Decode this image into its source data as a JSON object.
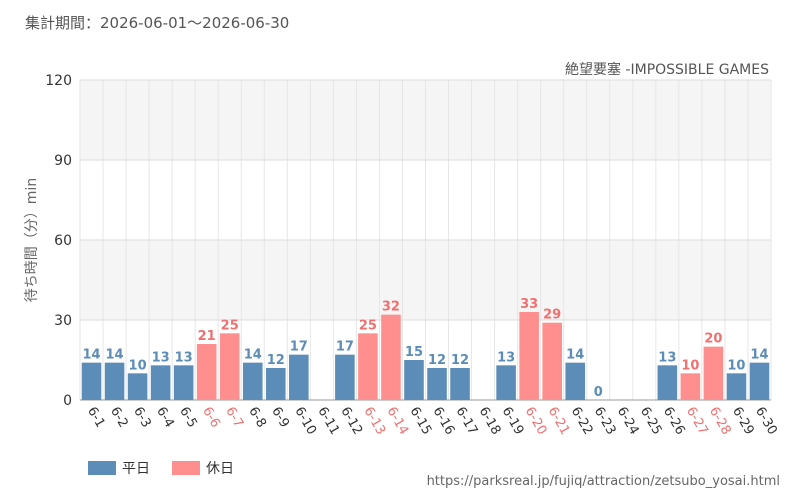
{
  "header": {
    "period": "集計期間：2026-06-01～2026-06-30"
  },
  "colors": {
    "weekday": "#5b8db8",
    "holiday": "#ff8e8e",
    "weekday_label": "#5b8db8",
    "holiday_label": "#f07070",
    "band": "#f5f5f5",
    "grid": "#dddddd"
  },
  "legend": {
    "weekday": "平日",
    "holiday": "休日"
  },
  "source": "https://parksreal.jp/fujiq/attraction/zetsubo_yosai.html",
  "chart_data": {
    "type": "bar",
    "title": "絶望要塞 -IMPOSSIBLE GAMES",
    "ylabel": "待ち時間（分）min",
    "ylim": [
      0,
      120
    ],
    "yticks": [
      0,
      30,
      60,
      90,
      120
    ],
    "grid": true,
    "legend_position": "bottom-left",
    "categories": [
      "6-1",
      "6-2",
      "6-3",
      "6-4",
      "6-5",
      "6-6",
      "6-7",
      "6-8",
      "6-9",
      "6-10",
      "6-11",
      "6-12",
      "6-13",
      "6-14",
      "6-15",
      "6-16",
      "6-17",
      "6-18",
      "6-19",
      "6-20",
      "6-21",
      "6-22",
      "6-23",
      "6-24",
      "6-25",
      "6-26",
      "6-27",
      "6-28",
      "6-29",
      "6-30"
    ],
    "values": [
      14,
      14,
      10,
      13,
      13,
      21,
      25,
      14,
      12,
      17,
      null,
      17,
      25,
      32,
      15,
      12,
      12,
      null,
      13,
      33,
      29,
      14,
      0,
      null,
      null,
      13,
      10,
      20,
      10,
      14
    ],
    "holiday": [
      false,
      false,
      false,
      false,
      false,
      true,
      true,
      false,
      false,
      false,
      false,
      false,
      true,
      true,
      false,
      false,
      false,
      false,
      false,
      true,
      true,
      false,
      false,
      false,
      false,
      false,
      true,
      true,
      false,
      false
    ]
  }
}
